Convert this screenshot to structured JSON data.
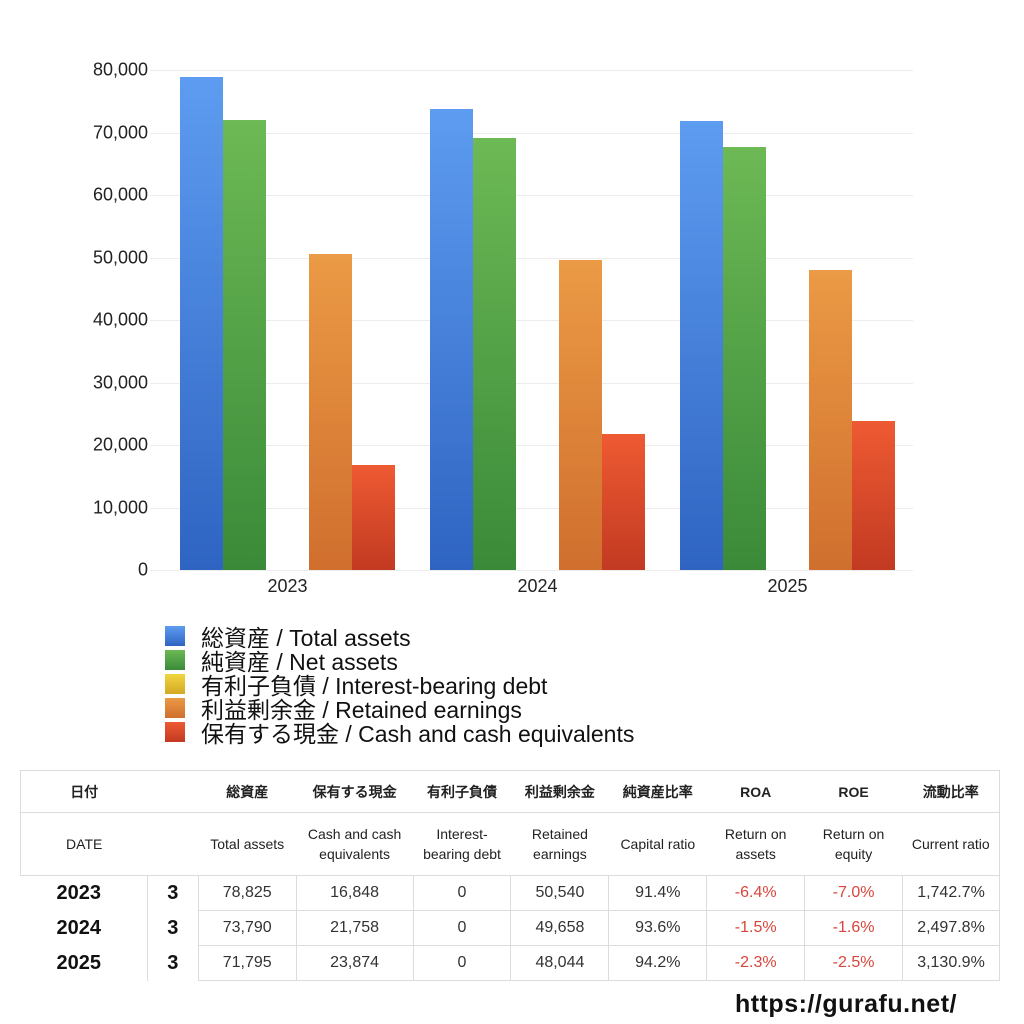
{
  "chart_data": {
    "type": "bar",
    "title": "",
    "xlabel": "",
    "ylabel": "",
    "ylim": [
      0,
      80000
    ],
    "yticks": [
      "0",
      "10,000",
      "20,000",
      "30,000",
      "40,000",
      "50,000",
      "60,000",
      "70,000",
      "80,000"
    ],
    "grid": true,
    "legend_position": "bottom",
    "categories": [
      "2023",
      "2024",
      "2025"
    ],
    "series": [
      {
        "name": "総資産 / Total assets",
        "color": "#4a8fe0",
        "values": [
          78825,
          73790,
          71795
        ]
      },
      {
        "name": "純資産 / Net assets",
        "color": "#5aa64a",
        "values": [
          72000,
          69100,
          67700
        ]
      },
      {
        "name": "有利子負債 / Interest-bearing debt",
        "color": "#e6c234",
        "values": [
          0,
          0,
          0
        ]
      },
      {
        "name": "利益剰余金 / Retained earnings",
        "color": "#df8a38",
        "values": [
          50540,
          49658,
          48044
        ]
      },
      {
        "name": "保有する現金 /  Cash and cash equivalents",
        "color": "#e0502e",
        "values": [
          16848,
          21758,
          23874
        ]
      }
    ]
  },
  "legend": [
    {
      "label": "総資産 / Total assets",
      "gradient": [
        "#5d9cf0",
        "#2f64c2"
      ]
    },
    {
      "label": "純資産 / Net assets",
      "gradient": [
        "#6db955",
        "#3a8a39"
      ]
    },
    {
      "label": "有利子負債 / Interest-bearing debt",
      "gradient": [
        "#f0d640",
        "#d4a824"
      ]
    },
    {
      "label": "利益剰余金 / Retained earnings",
      "gradient": [
        "#eb9a45",
        "#d06f2e"
      ]
    },
    {
      "label": "保有する現金 /  Cash and cash equivalents",
      "gradient": [
        "#ee5a32",
        "#c23a22"
      ]
    }
  ],
  "table": {
    "header_jp": [
      "日付",
      "",
      "総資産",
      "保有する現金",
      "有利子負債",
      "利益剰余金",
      "純資産比率",
      "ROA",
      "ROE",
      "流動比率"
    ],
    "header_en": [
      "DATE",
      "",
      "Total assets",
      "Cash and cash equivalents",
      "Interest-bearing debt",
      "Retained earnings",
      "Capital ratio",
      "Return on assets",
      "Return on equity",
      "Current ratio"
    ],
    "rows": [
      {
        "year": "2023",
        "month": "3",
        "total_assets": "78,825",
        "cash": "16,848",
        "debt": "0",
        "retained": "50,540",
        "capital_ratio": "91.4%",
        "roa": "-6.4%",
        "roe": "-7.0%",
        "current_ratio": "1,742.7%"
      },
      {
        "year": "2024",
        "month": "3",
        "total_assets": "73,790",
        "cash": "21,758",
        "debt": "0",
        "retained": "49,658",
        "capital_ratio": "93.6%",
        "roa": "-1.5%",
        "roe": "-1.6%",
        "current_ratio": "2,497.8%"
      },
      {
        "year": "2025",
        "month": "3",
        "total_assets": "71,795",
        "cash": "23,874",
        "debt": "0",
        "retained": "48,044",
        "capital_ratio": "94.2%",
        "roa": "-2.3%",
        "roe": "-2.5%",
        "current_ratio": "3,130.9%"
      }
    ]
  },
  "footer": {
    "url": "https://gurafu.net/"
  }
}
